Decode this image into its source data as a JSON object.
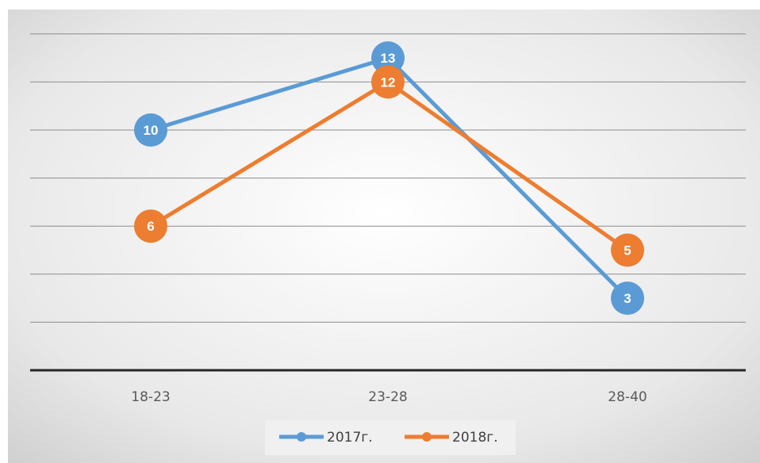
{
  "chart_data": {
    "type": "line",
    "title": "",
    "xlabel": "",
    "ylabel": "",
    "categories": [
      "18-23",
      "23-28",
      "28-40"
    ],
    "ylim": [
      0,
      14
    ],
    "grid": true,
    "legend": "bottom",
    "series": [
      {
        "name": "2017г.",
        "values": [
          10,
          13,
          3
        ],
        "color": "#5b9bd5"
      },
      {
        "name": "2018г.",
        "values": [
          6,
          12,
          5
        ],
        "color": "#ed7d31"
      }
    ]
  }
}
